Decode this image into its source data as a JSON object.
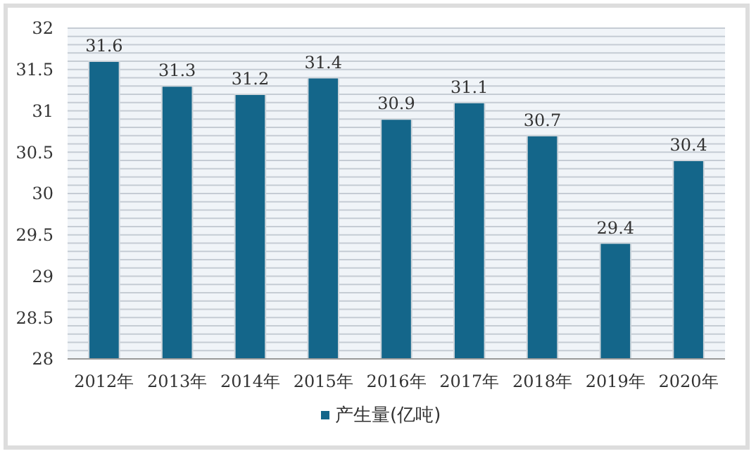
{
  "chart_data": {
    "type": "bar",
    "categories": [
      "2012年",
      "2013年",
      "2014年",
      "2015年",
      "2016年",
      "2017年",
      "2018年",
      "2019年",
      "2020年"
    ],
    "series": [
      {
        "name": "产生量(亿吨)",
        "color": "#14668a",
        "values": [
          31.6,
          31.3,
          31.2,
          31.4,
          30.9,
          31.1,
          30.7,
          29.4,
          30.4
        ]
      }
    ],
    "ylim": [
      28,
      32
    ],
    "yticks": [
      28,
      {
        "value": 28.1,
        "label": null
      },
      {
        "value": 28.2,
        "label": null
      },
      {
        "value": 28.3,
        "label": null
      },
      {
        "value": 28.4,
        "label": null
      },
      28.5,
      {
        "value": 28.6,
        "label": null
      },
      {
        "value": 28.7,
        "label": null
      },
      {
        "value": 28.8,
        "label": null
      },
      {
        "value": 28.9,
        "label": null
      },
      29,
      {
        "value": 29.1,
        "label": null
      },
      {
        "value": 29.2,
        "label": null
      },
      {
        "value": 29.3,
        "label": null
      },
      {
        "value": 29.4,
        "label": null
      },
      29.5,
      {
        "value": 29.6,
        "label": null
      },
      {
        "value": 29.7,
        "label": null
      },
      {
        "value": 29.8,
        "label": null
      },
      {
        "value": 29.9,
        "label": null
      },
      30,
      {
        "value": 30.1,
        "label": null
      },
      {
        "value": 30.2,
        "label": null
      },
      {
        "value": 30.3,
        "label": null
      },
      {
        "value": 30.4,
        "label": null
      },
      30.5,
      {
        "value": 30.6,
        "label": null
      },
      {
        "value": 30.7,
        "label": null
      },
      {
        "value": 30.8,
        "label": null
      },
      {
        "value": 30.9,
        "label": null
      },
      31,
      {
        "value": 31.1,
        "label": null
      },
      {
        "value": 31.2,
        "label": null
      },
      {
        "value": 31.3,
        "label": null
      },
      {
        "value": 31.4,
        "label": null
      },
      31.5,
      {
        "value": 31.6,
        "label": null
      },
      {
        "value": 31.7,
        "label": null
      },
      {
        "value": 31.8,
        "label": null
      },
      {
        "value": 31.9,
        "label": null
      },
      32
    ],
    "grid": "y",
    "legend": "bottom",
    "data_labels": true
  }
}
